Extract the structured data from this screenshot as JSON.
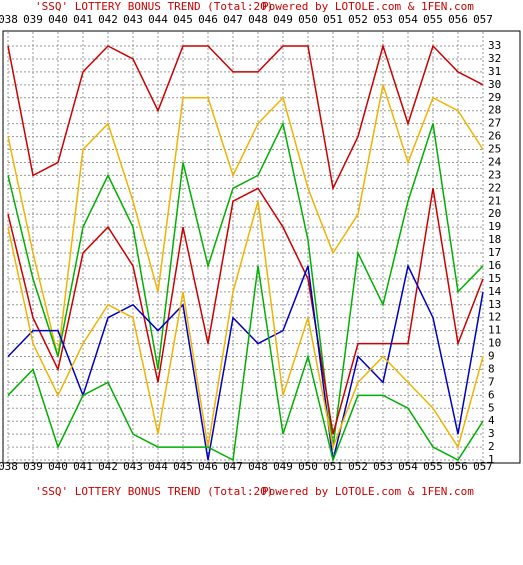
{
  "chart_data": {
    "type": "line",
    "title": "'SSQ' LOTTERY BONUS TREND (Total:20)",
    "subtitle": "Powered by LOTOLE.com & 1FEN.com",
    "categories": [
      "038",
      "039",
      "040",
      "041",
      "042",
      "043",
      "044",
      "045",
      "046",
      "047",
      "048",
      "049",
      "050",
      "051",
      "052",
      "053",
      "054",
      "055",
      "056",
      "057"
    ],
    "series": [
      {
        "color": "#cc0000",
        "values": [
          33,
          23,
          24,
          31,
          33,
          32,
          28,
          33,
          33,
          31,
          31,
          33,
          33,
          22,
          26,
          33,
          27,
          33,
          31,
          30
        ]
      },
      {
        "color": "#f0b400",
        "values": [
          26,
          17,
          9,
          25,
          27,
          21,
          14,
          29,
          29,
          23,
          27,
          29,
          22,
          17,
          20,
          30,
          24,
          29,
          28,
          25
        ]
      },
      {
        "color": "#00b000",
        "values": [
          23,
          15,
          9,
          19,
          23,
          19,
          8,
          24,
          16,
          22,
          23,
          27,
          18,
          2,
          17,
          13,
          21,
          27,
          14,
          16
        ]
      },
      {
        "color": "#cc0000",
        "values": [
          20,
          12,
          8,
          17,
          19,
          16,
          7,
          19,
          10,
          21,
          22,
          19,
          15,
          3,
          10,
          10,
          10,
          22,
          10,
          15
        ]
      },
      {
        "color": "#0000c0",
        "values": [
          9,
          11,
          11,
          6,
          12,
          13,
          11,
          13,
          1,
          12,
          10,
          11,
          16,
          1,
          9,
          7,
          16,
          12,
          3,
          14
        ]
      },
      {
        "color": "#f0b400",
        "values": [
          19,
          10,
          6,
          10,
          13,
          12,
          3,
          14,
          2,
          14,
          21,
          6,
          12,
          2,
          7,
          9,
          7,
          5,
          2,
          9
        ]
      },
      {
        "color": "#00b000",
        "values": [
          6,
          8,
          2,
          6,
          7,
          3,
          2,
          2,
          2,
          1,
          16,
          3,
          9,
          1,
          6,
          6,
          5,
          2,
          1,
          4
        ]
      }
    ],
    "ylim": [
      1,
      33
    ],
    "yticks": [
      1,
      2,
      3,
      4,
      5,
      6,
      7,
      8,
      9,
      10,
      11,
      12,
      13,
      14,
      15,
      16,
      17,
      18,
      19,
      20,
      21,
      22,
      23,
      24,
      25,
      26,
      27,
      28,
      29,
      30,
      31,
      32,
      33
    ],
    "grid": true
  }
}
